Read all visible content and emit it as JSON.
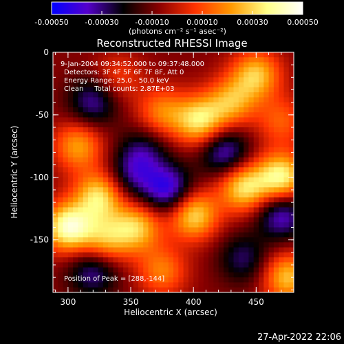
{
  "colorbar": {
    "tick_labels": [
      "-0.00050",
      "-0.00030",
      "-0.00010",
      "0.00010",
      "0.00030",
      "0.00050"
    ],
    "tick_values": [
      -0.0005,
      -0.0003,
      -0.0001,
      0.0001,
      0.0003,
      0.0005
    ],
    "range": [
      -0.0005,
      0.0005
    ],
    "unit_label": "(photons cm⁻² s⁻¹ asec⁻²)",
    "colors": [
      "#0000ff",
      "#5500cc",
      "#000000",
      "#8a0000",
      "#ff3300",
      "#ff9900",
      "#ffff88",
      "#ffffff"
    ]
  },
  "annotations": {
    "time": "9-Jan-2004 09:34:52.000 to 09:37:48.000",
    "detectors": "Detectors: 3F 4F 5F 6F 7F 8F, Att 0",
    "energy": "Energy Range: 25.0 - 50.0 keV",
    "clean": "Clean     Total counts: 2.87E+03",
    "peak": "Position of Peak = [288,-144]"
  },
  "footer": {
    "timestamp": "27-Apr-2022 22:06"
  },
  "chart_data": {
    "type": "heatmap",
    "title": "Reconstructed RHESSI Image",
    "xlabel": "Heliocentric X (arcsec)",
    "ylabel": "Heliocentric Y (arcsec)",
    "xlim": [
      288,
      480
    ],
    "ylim": [
      -192,
      0
    ],
    "xticks": [
      300,
      350,
      400,
      450
    ],
    "yticks": [
      0,
      -50,
      -100,
      -150
    ],
    "xtick_labels": [
      "300",
      "350",
      "400",
      "450"
    ],
    "ytick_labels": [
      "0",
      "-50",
      "-100",
      "-150"
    ],
    "peak_position": [
      288,
      -144
    ],
    "blobs": [
      {
        "x": 300,
        "y": -140,
        "v": 0.0005
      },
      {
        "x": 325,
        "y": -115,
        "v": 0.0004
      },
      {
        "x": 308,
        "y": -75,
        "v": 0.0003
      },
      {
        "x": 330,
        "y": -150,
        "v": 0.0003
      },
      {
        "x": 355,
        "y": -140,
        "v": 0.00035
      },
      {
        "x": 400,
        "y": -130,
        "v": 0.0004
      },
      {
        "x": 440,
        "y": -108,
        "v": 0.0004
      },
      {
        "x": 470,
        "y": -100,
        "v": 0.00045
      },
      {
        "x": 475,
        "y": -180,
        "v": 0.00035
      },
      {
        "x": 405,
        "y": -55,
        "v": 0.0004
      },
      {
        "x": 450,
        "y": -18,
        "v": 0.00035
      },
      {
        "x": 430,
        "y": -40,
        "v": 0.0003
      },
      {
        "x": 375,
        "y": -48,
        "v": 0.00025
      },
      {
        "x": 375,
        "y": -175,
        "v": 0.00025
      },
      {
        "x": 340,
        "y": -20,
        "v": 0.00015
      },
      {
        "x": 470,
        "y": -55,
        "v": 0.0002
      },
      {
        "x": 360,
        "y": -80,
        "v": -0.0002
      },
      {
        "x": 320,
        "y": -40,
        "v": -0.00025
      },
      {
        "x": 380,
        "y": -110,
        "v": -0.00035
      },
      {
        "x": 470,
        "y": -130,
        "v": -0.0003
      },
      {
        "x": 425,
        "y": -80,
        "v": -0.0003
      },
      {
        "x": 320,
        "y": -175,
        "v": -0.00025
      },
      {
        "x": 350,
        "y": -100,
        "v": -0.0002
      },
      {
        "x": 440,
        "y": -165,
        "v": -0.0002
      }
    ]
  }
}
